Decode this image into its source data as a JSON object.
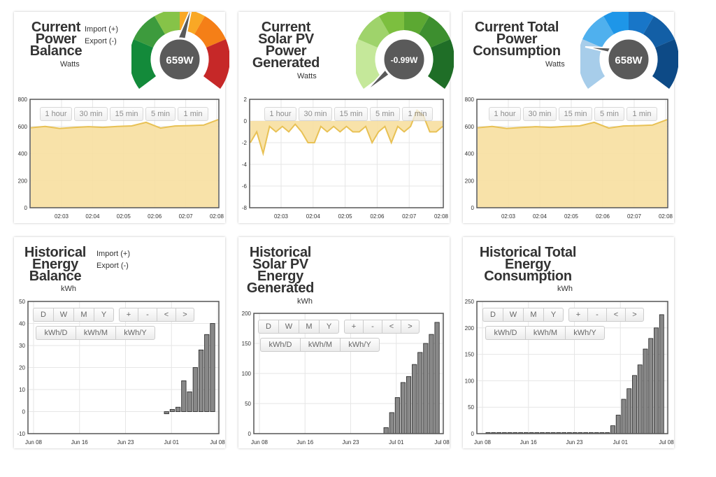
{
  "colors": {
    "area_fill": "#f7dfa0",
    "area_line": "#e8c154",
    "bar_fill": "#888888",
    "axis": "#555555",
    "grid": "#e6e6e6",
    "gauge_needle": "#5a5a5a"
  },
  "live_time_buttons": [
    "1 hour",
    "30 min",
    "15 min",
    "5 min",
    "1 min"
  ],
  "history_range_buttons": [
    "D",
    "W",
    "M",
    "Y"
  ],
  "history_nav_buttons": [
    "+",
    "-",
    "<",
    ">"
  ],
  "history_unit_buttons": [
    "kWh/D",
    "kWh/M",
    "kWh/Y"
  ],
  "panels": {
    "power_balance": {
      "title1": "Current",
      "title2": "Power",
      "title3": "Balance",
      "unit": "Watts",
      "import_label": "Import (+)",
      "export_label": "Export (-)",
      "gauge_value": "659W",
      "gauge_icon": "power-balance-gauge"
    },
    "solar_power": {
      "title1": "Current",
      "title2": "Solar PV",
      "title3": "Power",
      "title4": "Generated",
      "unit": "Watts",
      "gauge_value": "-0.99W",
      "gauge_icon": "solar-gauge"
    },
    "total_consumption": {
      "title1": "Current Total",
      "title2": "Power",
      "title3": "Consumption",
      "unit": "Watts",
      "gauge_value": "658W",
      "gauge_icon": "consumption-gauge"
    },
    "hist_balance": {
      "title1": "Historical",
      "title2": "Energy",
      "title3": "Balance",
      "unit": "kWh",
      "import_label": "Import (+)",
      "export_label": "Export (-)"
    },
    "hist_solar": {
      "title1": "Historical",
      "title2": "Solar PV",
      "title3": "Energy",
      "title4": "Generated",
      "unit": "kWh"
    },
    "hist_consumption": {
      "title1": "Historical Total",
      "title2": "Energy",
      "title3": "Consumption",
      "unit": "kWh"
    }
  },
  "chart_data": [
    {
      "id": "power_balance",
      "type": "area",
      "x": [
        "02:02:30",
        "02:03",
        "02:03:30",
        "02:04",
        "02:04:30",
        "02:05",
        "02:05:30",
        "02:06",
        "02:06:15",
        "02:06:30",
        "02:07",
        "02:07:30",
        "02:08",
        "02:08:15"
      ],
      "x_ticks": [
        "02:03",
        "02:04",
        "02:05",
        "02:06",
        "02:07",
        "02:08"
      ],
      "values": [
        590,
        600,
        585,
        592,
        598,
        593,
        600,
        604,
        630,
        588,
        603,
        606,
        610,
        650
      ],
      "ylim": [
        0,
        800
      ],
      "y_ticks": [
        "0",
        "200",
        "400",
        "600",
        "800"
      ]
    },
    {
      "id": "solar_power",
      "type": "area",
      "x_ticks": [
        "02:03",
        "02:04",
        "02:05",
        "02:06",
        "02:07",
        "02:08"
      ],
      "values": [
        -2,
        -1,
        -3,
        -0.5,
        -1,
        -0.5,
        -1,
        -0.3,
        -1,
        -2,
        -2,
        -0.5,
        -1,
        -0.5,
        -1,
        -0.5,
        -1,
        -1,
        -0.5,
        -2,
        -1,
        -0.5,
        -2,
        -0.5,
        -1,
        -0.5,
        1,
        0.5,
        -1,
        -1,
        -0.5
      ],
      "ylim": [
        -8,
        2
      ],
      "y_ticks": [
        "2",
        "0",
        "-2",
        "-4",
        "-6",
        "-8"
      ]
    },
    {
      "id": "total_consumption",
      "type": "area",
      "x_ticks": [
        "02:03",
        "02:04",
        "02:05",
        "02:06",
        "02:07",
        "02:08"
      ],
      "values": [
        590,
        600,
        585,
        592,
        598,
        593,
        600,
        604,
        630,
        588,
        603,
        606,
        610,
        650
      ],
      "ylim": [
        0,
        800
      ],
      "y_ticks": [
        "0",
        "200",
        "400",
        "600",
        "800"
      ]
    },
    {
      "id": "hist_balance",
      "type": "bar",
      "x_ticks": [
        "Jun 08",
        "Jun 16",
        "Jun 23",
        "Jul 01",
        "Jul 08"
      ],
      "values": [
        -1,
        1,
        2,
        14,
        9,
        20,
        28,
        35,
        40
      ],
      "ylim": [
        -10,
        50
      ],
      "y_ticks": [
        "50",
        "40",
        "30",
        "20",
        "10",
        "0",
        "-10"
      ]
    },
    {
      "id": "hist_solar",
      "type": "bar",
      "x_ticks": [
        "Jun 08",
        "Jun 16",
        "Jun 23",
        "Jul 01",
        "Jul 08"
      ],
      "values": [
        10,
        35,
        60,
        85,
        95,
        115,
        135,
        150,
        165,
        185
      ],
      "ylim": [
        0,
        200
      ],
      "y_ticks": [
        "200",
        "150",
        "100",
        "50",
        "0"
      ]
    },
    {
      "id": "hist_consumption",
      "type": "bar",
      "x_ticks": [
        "Jun 08",
        "Jun 16",
        "Jun 23",
        "Jul 01",
        "Jul 08"
      ],
      "values": [
        2,
        2,
        2,
        2,
        2,
        2,
        2,
        2,
        2,
        2,
        2,
        2,
        2,
        2,
        2,
        2,
        2,
        2,
        2,
        2,
        2,
        2,
        2,
        15,
        35,
        65,
        85,
        110,
        130,
        160,
        180,
        200,
        225
      ],
      "ylim": [
        0,
        250
      ],
      "y_ticks": [
        "250",
        "200",
        "150",
        "100",
        "50",
        "0"
      ]
    }
  ]
}
